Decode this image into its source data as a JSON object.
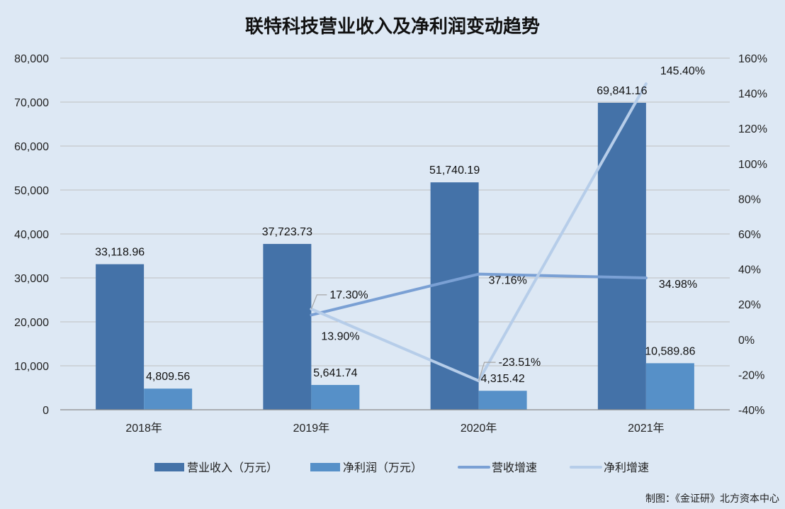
{
  "chart_data": {
    "type": "bar",
    "title": "联特科技营业收入及净利润变动趋势",
    "categories": [
      "2018年",
      "2019年",
      "2020年",
      "2021年"
    ],
    "series": [
      {
        "name": "营业收入（万元）",
        "kind": "bar",
        "axis": "left",
        "color": "#4472a8",
        "values": [
          33118.96,
          37723.73,
          51740.19,
          69841.16
        ],
        "labels": [
          "33,118.96",
          "37,723.73",
          "51,740.19",
          "69,841.16"
        ]
      },
      {
        "name": "净利润（万元）",
        "kind": "bar",
        "axis": "left",
        "color": "#5690c8",
        "values": [
          4809.56,
          5641.74,
          4315.42,
          10589.86
        ],
        "labels": [
          "4,809.56",
          "5,641.74",
          "4,315.42",
          "10,589.86"
        ]
      },
      {
        "name": "营收增速",
        "kind": "line",
        "axis": "right",
        "color": "#7aa0d4",
        "values": [
          null,
          13.9,
          37.16,
          34.98
        ],
        "labels": [
          "",
          "13.90%",
          "37.16%",
          "34.98%"
        ]
      },
      {
        "name": "净利增速",
        "kind": "line",
        "axis": "right",
        "color": "#b6cde9",
        "values": [
          null,
          17.3,
          -23.51,
          145.4
        ],
        "labels": [
          "",
          "17.30%",
          "-23.51%",
          "145.40%"
        ]
      }
    ],
    "y_left": {
      "min": 0,
      "max": 80000,
      "step": 10000,
      "ticks": [
        "0",
        "10,000",
        "20,000",
        "30,000",
        "40,000",
        "50,000",
        "60,000",
        "70,000",
        "80,000"
      ]
    },
    "y_right": {
      "min": -40,
      "max": 160,
      "step": 20,
      "ticks": [
        "-40%",
        "-20%",
        "0%",
        "20%",
        "40%",
        "60%",
        "80%",
        "100%",
        "120%",
        "140%",
        "160%"
      ]
    },
    "grid": true,
    "legend_position": "bottom",
    "credit": "制图：《金证研》北方资本中心"
  }
}
